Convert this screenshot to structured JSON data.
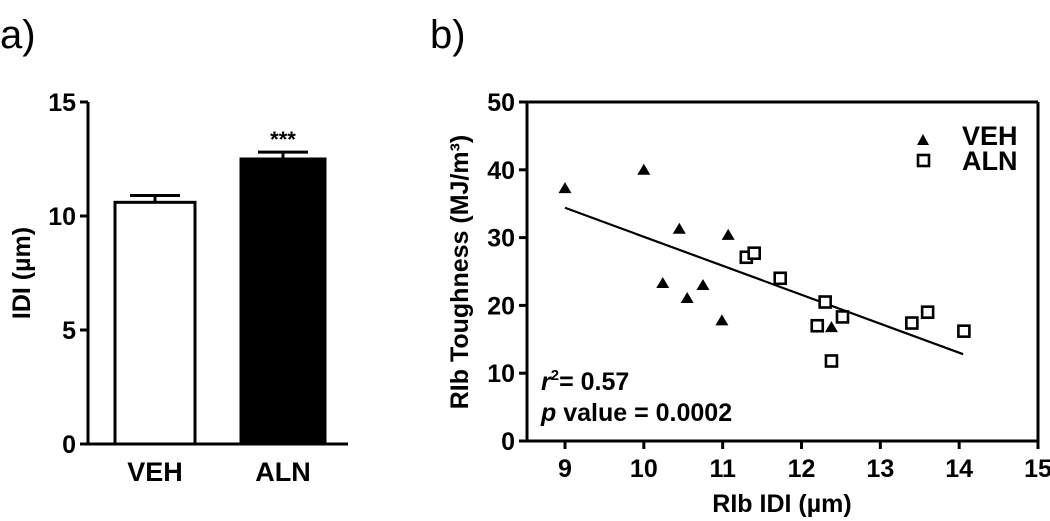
{
  "chart_data": [
    {
      "panel": "a)",
      "type": "bar",
      "title": "",
      "xlabel": "",
      "ylabel": "IDI (µm)",
      "ylim": [
        0,
        15
      ],
      "yticks": [
        0,
        5,
        10,
        15
      ],
      "categories": [
        "VEH",
        "ALN"
      ],
      "values": [
        10.6,
        12.5
      ],
      "errors": [
        0.3,
        0.3
      ],
      "bar_fills": [
        "#ffffff",
        "#000000"
      ],
      "annotations": [
        {
          "category": "ALN",
          "text": "***"
        }
      ],
      "grid": false
    },
    {
      "panel": "b)",
      "type": "scatter",
      "title": "",
      "xlabel": "RIb IDI (µm)",
      "ylabel": "RIb Toughness (MJ/m³)",
      "xlim": [
        8.5,
        15
      ],
      "ylim": [
        0,
        50
      ],
      "xticks": [
        9,
        10,
        11,
        12,
        13,
        14,
        15
      ],
      "yticks": [
        0,
        10,
        20,
        30,
        40,
        50
      ],
      "grid": false,
      "legend": {
        "position": "top-right",
        "entries": [
          {
            "label": "VEH",
            "marker": "filled-triangle"
          },
          {
            "label": "ALN",
            "marker": "open-square"
          }
        ]
      },
      "series": [
        {
          "name": "VEH",
          "marker": "filled-triangle",
          "points": [
            [
              9.0,
              37.3
            ],
            [
              10.0,
              40.0
            ],
            [
              10.45,
              31.3
            ],
            [
              11.07,
              30.4
            ],
            [
              10.24,
              23.3
            ],
            [
              10.75,
              23.0
            ],
            [
              10.55,
              21.1
            ],
            [
              10.99,
              17.8
            ],
            [
              12.38,
              16.8
            ]
          ]
        },
        {
          "name": "ALN",
          "marker": "open-square",
          "points": [
            [
              11.3,
              27.1
            ],
            [
              11.4,
              27.7
            ],
            [
              11.73,
              24.0
            ],
            [
              12.3,
              20.5
            ],
            [
              12.52,
              18.3
            ],
            [
              12.2,
              17.0
            ],
            [
              12.38,
              11.8
            ],
            [
              13.4,
              17.4
            ],
            [
              13.6,
              19.0
            ],
            [
              14.06,
              16.2
            ]
          ]
        }
      ],
      "regression_line": {
        "x": [
          9.0,
          14.05
        ],
        "y": [
          34.4,
          12.8
        ]
      },
      "annotations": {
        "r2_prefix": "r",
        "r2_sup": "2",
        "r2_text": "= 0.57",
        "p_prefix": "p",
        "p_text": " value = 0.0002"
      }
    }
  ]
}
